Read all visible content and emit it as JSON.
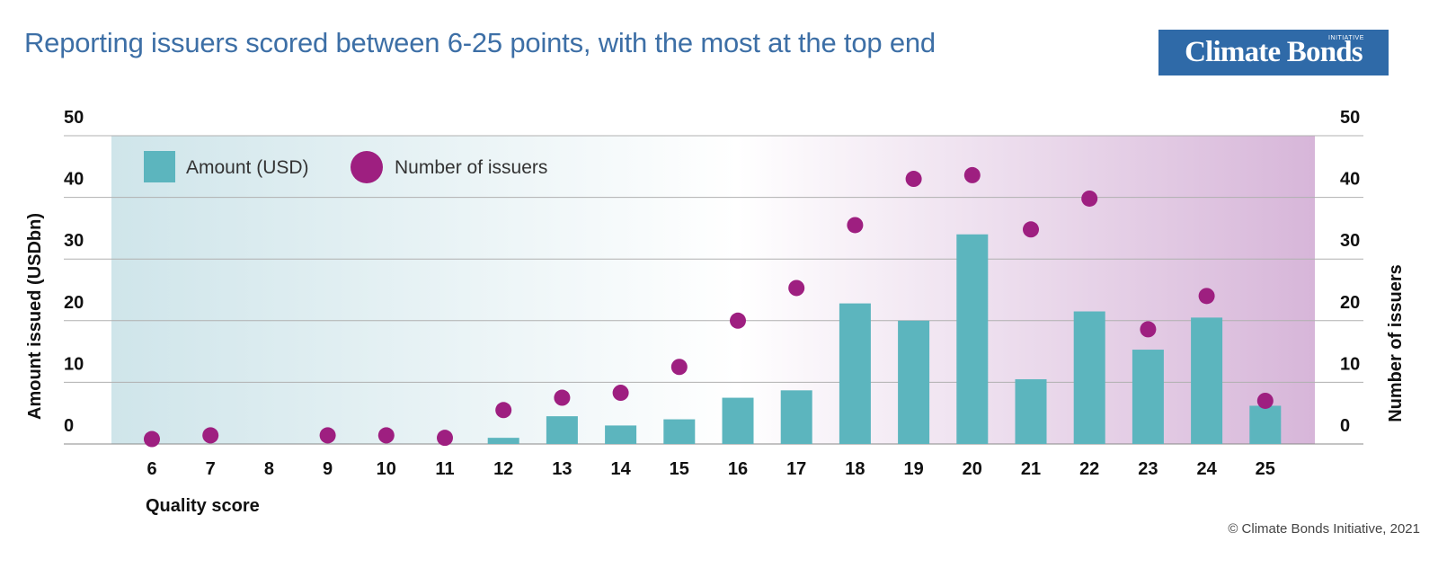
{
  "title": "Reporting issuers scored between 6-25 points, with the most at the top end",
  "logo": {
    "text": "Climate Bonds",
    "superscript": "INITIATIVE"
  },
  "copyright": "© Climate Bonds Initiative, 2021",
  "colors": {
    "bar": "#5cb5be",
    "dot": "#9e1f80",
    "title": "#3d6fa6",
    "logo_bg": "#2f6aa8"
  },
  "chart_data": {
    "type": "bar",
    "xlabel": "Quality score",
    "ylabel_left": "Amount issued (USDbn)",
    "ylabel_right": "Number of issuers",
    "ylim_left": [
      0,
      50
    ],
    "ylim_right": [
      0,
      50
    ],
    "yticks": [
      0,
      10,
      20,
      30,
      40,
      50
    ],
    "categories": [
      "6",
      "7",
      "8",
      "9",
      "10",
      "11",
      "12",
      "13",
      "14",
      "15",
      "16",
      "17",
      "18",
      "19",
      "20",
      "21",
      "22",
      "23",
      "24",
      "25"
    ],
    "series": [
      {
        "name": "Amount (USD)",
        "type": "bar",
        "axis": "left",
        "values": [
          0,
          0,
          0,
          0,
          0,
          0,
          1,
          4.5,
          3,
          4,
          7.5,
          8.7,
          22.8,
          20,
          34,
          10.5,
          21.5,
          15.3,
          20.5,
          6.2
        ]
      },
      {
        "name": "Number of issuers",
        "type": "scatter",
        "axis": "right",
        "values": [
          0.8,
          1.4,
          null,
          1.4,
          1.4,
          1,
          5.5,
          7.5,
          8.3,
          12.5,
          20,
          25.3,
          35.5,
          43,
          43.6,
          34.8,
          39.8,
          18.6,
          24,
          7
        ]
      }
    ],
    "legend": {
      "position": "top-left"
    },
    "grid": true
  }
}
